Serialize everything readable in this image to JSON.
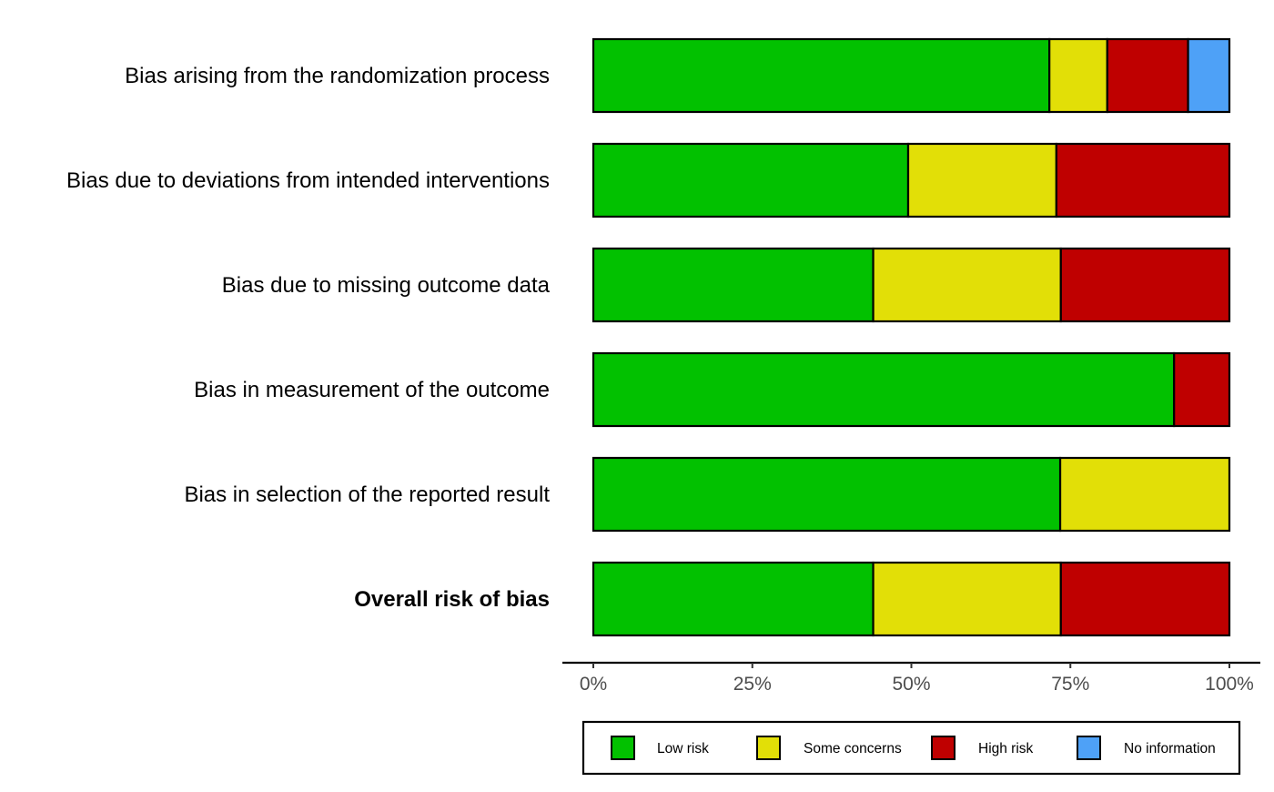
{
  "chart_data": {
    "type": "bar",
    "orientation": "horizontal",
    "stacked": true,
    "categories": [
      "Bias arising from the randomization process",
      "Bias due to deviations from intended interventions",
      "Bias due to missing outcome data",
      "Bias in measurement of the outcome",
      "Bias in selection of the reported result",
      "Overall risk of bias"
    ],
    "bold_categories": [
      "Overall risk of bias"
    ],
    "series": [
      {
        "name": "Low risk",
        "color": "#02C100",
        "values": [
          71.7,
          49.5,
          44,
          91.3,
          73.4,
          44
        ]
      },
      {
        "name": "Some concerns",
        "color": "#E2DF07",
        "values": [
          9.1,
          23.3,
          29.5,
          0,
          26.6,
          29.5
        ]
      },
      {
        "name": "High risk",
        "color": "#BF0000",
        "values": [
          12.7,
          27.2,
          26.5,
          8.7,
          0,
          26.5
        ]
      },
      {
        "name": "No information",
        "color": "#4EA1F7",
        "values": [
          6.5,
          0,
          0,
          0,
          0,
          0
        ]
      }
    ],
    "xlim": [
      0,
      100
    ],
    "x_ticks": [
      "0%",
      "25%",
      "50%",
      "75%",
      "100%"
    ],
    "title": "",
    "xlabel": "",
    "ylabel": "",
    "grid": false,
    "legend_position": "bottom"
  }
}
